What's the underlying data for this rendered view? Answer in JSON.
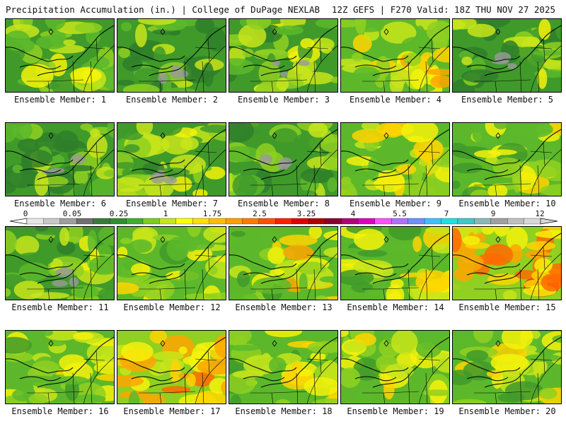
{
  "header": {
    "title_left": "Precipitation Accumulation (in.) | College of DuPage NEXLAB",
    "title_right": "12Z GEFS | F270 Valid: 18Z THU NOV 27 2025"
  },
  "legend": {
    "ticks": [
      "0",
      "0.05",
      "0.25",
      "1",
      "1.75",
      "2.5",
      "3.25",
      "4",
      "5.5",
      "7",
      "9",
      "12"
    ],
    "colors": [
      "#e6e6e6",
      "#c8c8c8",
      "#9e9e9e",
      "#707070",
      "#3b7a3b",
      "#2f8f2f",
      "#3fae2f",
      "#7ccd1f",
      "#c6e81a",
      "#ffff00",
      "#ffe000",
      "#ffbf00",
      "#ff9f00",
      "#ff7a00",
      "#ff5000",
      "#ff2000",
      "#e00000",
      "#b00000",
      "#8a0030",
      "#b0007a",
      "#e000c0",
      "#ff50ff",
      "#b070ff",
      "#7090ff",
      "#40c0ff",
      "#20e0e0",
      "#40c8c8",
      "#8ab8b8",
      "#a0a0a0",
      "#c0c0c0",
      "#d8d8d8"
    ]
  },
  "members": [
    {
      "label": "Ensemble Member: 1",
      "intensity": 0.35
    },
    {
      "label": "Ensemble Member: 2",
      "intensity": 0.15
    },
    {
      "label": "Ensemble Member: 3",
      "intensity": 0.3
    },
    {
      "label": "Ensemble Member: 4",
      "intensity": 0.55
    },
    {
      "label": "Ensemble Member: 5",
      "intensity": 0.25
    },
    {
      "label": "Ensemble Member: 6",
      "intensity": 0.2
    },
    {
      "label": "Ensemble Member: 7",
      "intensity": 0.3
    },
    {
      "label": "Ensemble Member: 8",
      "intensity": 0.2
    },
    {
      "label": "Ensemble Member: 9",
      "intensity": 0.55
    },
    {
      "label": "Ensemble Member: 10",
      "intensity": 0.4
    },
    {
      "label": "Ensemble Member: 11",
      "intensity": 0.3
    },
    {
      "label": "Ensemble Member: 12",
      "intensity": 0.45
    },
    {
      "label": "Ensemble Member: 13",
      "intensity": 0.5
    },
    {
      "label": "Ensemble Member: 14",
      "intensity": 0.45
    },
    {
      "label": "Ensemble Member: 15",
      "intensity": 0.85
    },
    {
      "label": "Ensemble Member: 16",
      "intensity": 0.4
    },
    {
      "label": "Ensemble Member: 17",
      "intensity": 0.7
    },
    {
      "label": "Ensemble Member: 18",
      "intensity": 0.45
    },
    {
      "label": "Ensemble Member: 19",
      "intensity": 0.5
    },
    {
      "label": "Ensemble Member: 20",
      "intensity": 0.4
    }
  ]
}
